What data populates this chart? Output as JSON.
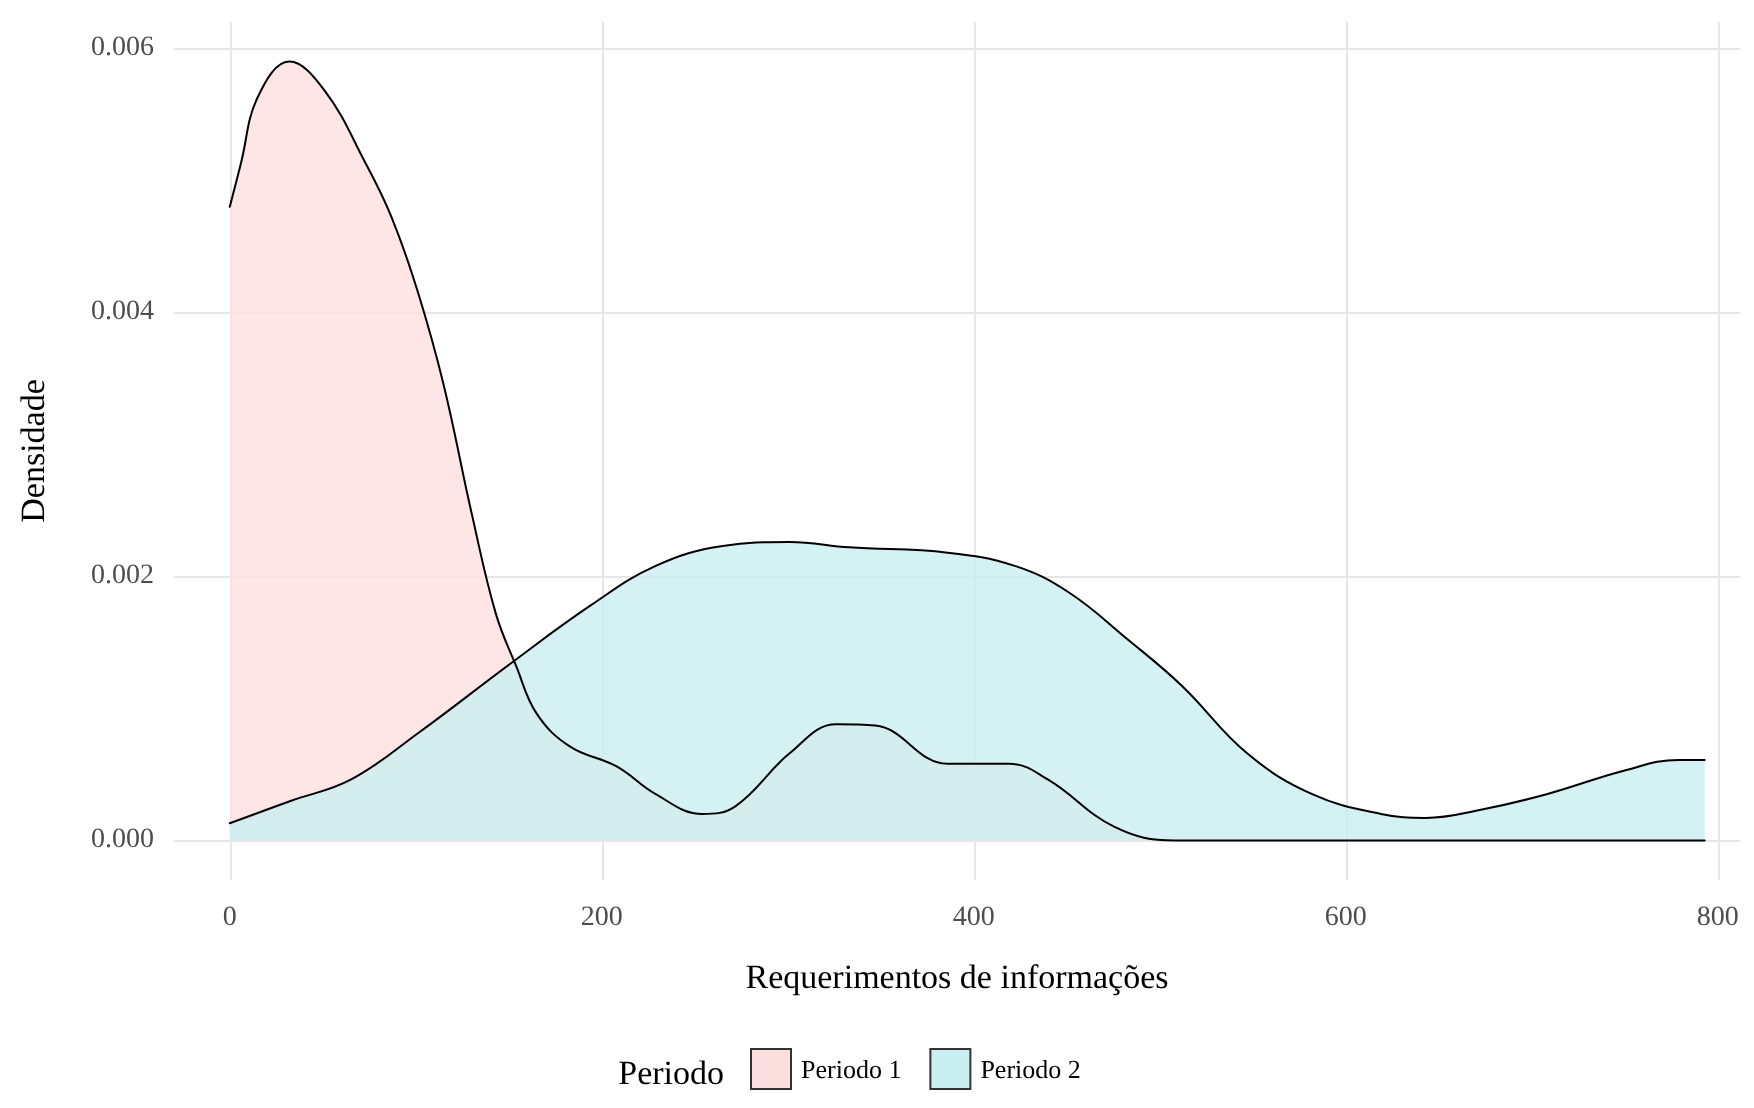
{
  "chart_data": {
    "type": "area",
    "xlabel": "Requerimentos de informações",
    "ylabel": "Densidade",
    "legend_title": "Periodo",
    "legend": "bottom",
    "grid": true,
    "xlim": [
      -30,
      812
    ],
    "xticks": [
      0,
      200,
      400,
      600,
      800
    ],
    "ylim": [
      -0.0003,
      0.0062
    ],
    "yticks": [
      {
        "value": 0,
        "label": "0.000"
      },
      {
        "value": 0.002,
        "label": "0.002"
      },
      {
        "value": 0.004,
        "label": "0.004"
      },
      {
        "value": 0.006,
        "label": "0.006"
      }
    ],
    "series": [
      {
        "name": "Periodo 1",
        "color": "#fce0df",
        "x": [
          0,
          6,
          15,
          32,
          51,
          73,
          87,
          101,
          115,
          130,
          143,
          154,
          165,
          183,
          208,
          229,
          254,
          272,
          301,
          326,
          347,
          386,
          419,
          440,
          476,
          508,
          600,
          700,
          793
        ],
        "values": [
          0.0048,
          0.00513,
          0.00563,
          0.0059,
          0.00568,
          0.00513,
          0.00472,
          0.00416,
          0.00345,
          0.00248,
          0.00172,
          0.00132,
          0.00096,
          0.00071,
          0.00056,
          0.00035,
          0.0002,
          0.00026,
          0.00066,
          0.00088,
          0.00087,
          0.00058,
          0.00058,
          0.00046,
          0.0001,
          0,
          0,
          0,
          0
        ]
      },
      {
        "name": "Periodo 2",
        "color": "#c9eff0",
        "x": [
          0,
          33,
          65,
          101,
          151,
          194,
          229,
          265,
          301,
          333,
          386,
          422,
          451,
          483,
          512,
          547,
          582,
          619,
          643,
          672,
          708,
          750,
          779,
          793
        ],
        "values": [
          0.00013,
          0.0003,
          0.00046,
          0.00081,
          0.00134,
          0.00178,
          0.00208,
          0.00223,
          0.00226,
          0.00222,
          0.00218,
          0.00208,
          0.00188,
          0.00152,
          0.00117,
          0.00066,
          0.00035,
          0.0002,
          0.00017,
          0.00023,
          0.00035,
          0.00053,
          0.00061,
          0.00061
        ]
      }
    ]
  }
}
